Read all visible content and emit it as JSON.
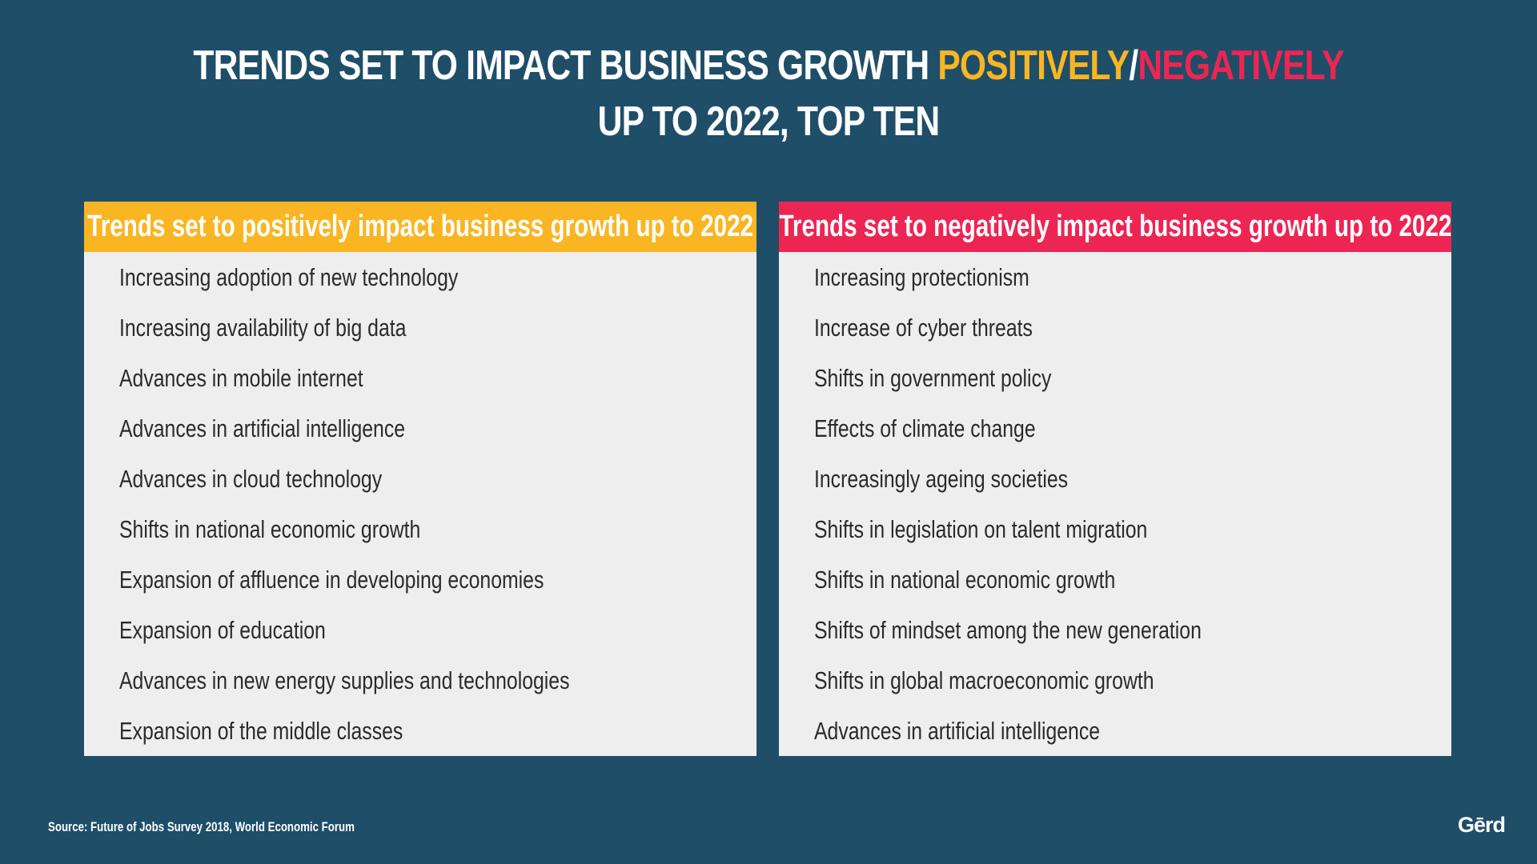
{
  "title": {
    "line1_prefix": "TRENDS SET TO IMPACT BUSINESS GROWTH ",
    "positive_word": "POSITIVELY",
    "separator": "/",
    "negative_word": "NEGATIVELY",
    "line2": "UP TO 2022, TOP TEN"
  },
  "colors": {
    "background": "#1e4e68",
    "positive": "#f9b522",
    "negative": "#ed2553",
    "panel": "#efeeee",
    "text": "#2b2b2b"
  },
  "positive_panel": {
    "header": "Trends set to positively impact business growth up to 2022",
    "items": [
      "Increasing adoption of new technology",
      "Increasing availability of big data",
      "Advances in mobile internet",
      "Advances in artificial intelligence",
      "Advances in cloud technology",
      "Shifts in national economic growth",
      "Expansion of affluence in developing economies",
      "Expansion of education",
      "Advances in new energy supplies and technologies",
      "Expansion of the middle classes"
    ]
  },
  "negative_panel": {
    "header": "Trends set to negatively impact business growth up to 2022",
    "items": [
      "Increasing protectionism",
      "Increase of cyber threats",
      "Shifts in government policy",
      "Effects of climate change",
      "Increasingly ageing societies",
      "Shifts in legislation on talent migration",
      "Shifts in national economic growth",
      "Shifts of mindset among the new generation",
      "Shifts in global macroeconomic growth",
      "Advances in artificial intelligence"
    ]
  },
  "footer": {
    "source": "Source: Future of Jobs Survey 2018, World Economic Forum",
    "logo": "Gērd"
  }
}
